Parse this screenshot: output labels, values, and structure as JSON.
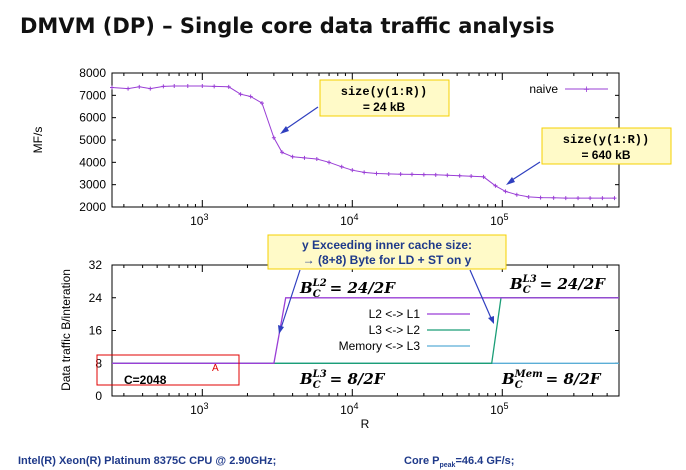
{
  "title": "DMVM (DP) – Single core data traffic analysis",
  "footer": {
    "cpu": "Intel(R) Xeon(R) Platinum 8375C CPU @ 2.90GHz;",
    "peak_prefix": "Core P",
    "peak_sub": "peak",
    "peak_suffix": "=46.4 GF/s;"
  },
  "colors": {
    "naive": "#9a3fd6",
    "l2_l1": "#9a3fd6",
    "l3_l2": "#1b9e77",
    "mem_l3": "#5aaed6",
    "annotation_border": "#f5d000",
    "annotation_fill": "#fffac8",
    "arrow": "#2f3fbf",
    "box_red": "#e00000"
  },
  "chart_data": [
    {
      "type": "line",
      "xscale": "log",
      "xlim": [
        250,
        600000
      ],
      "ylim": [
        2000,
        8000
      ],
      "ylabel": "MF/s",
      "yticks": [
        "2000",
        "3000",
        "4000",
        "5000",
        "6000",
        "7000",
        "8000"
      ],
      "xticks": [
        {
          "base": "10",
          "exp": "3"
        },
        {
          "base": "10",
          "exp": "4"
        },
        {
          "base": "10",
          "exp": "5"
        }
      ],
      "legend": "top-right",
      "series": [
        {
          "name": "naive",
          "x": [
            250,
            320,
            380,
            450,
            550,
            650,
            800,
            1000,
            1200,
            1500,
            1800,
            2100,
            2500,
            3000,
            3400,
            4000,
            4800,
            5800,
            7000,
            8500,
            10000,
            12000,
            14500,
            17500,
            21000,
            25000,
            30000,
            36000,
            43000,
            52000,
            62000,
            75000,
            90000,
            105000,
            125000,
            150000,
            180000,
            220000,
            265000,
            320000,
            385000,
            465000,
            560000
          ],
          "y": [
            7350,
            7300,
            7380,
            7300,
            7400,
            7420,
            7420,
            7420,
            7400,
            7380,
            7050,
            6950,
            6650,
            5100,
            4450,
            4250,
            4200,
            4150,
            4000,
            3800,
            3650,
            3550,
            3500,
            3480,
            3470,
            3460,
            3450,
            3440,
            3420,
            3400,
            3380,
            3350,
            2950,
            2700,
            2550,
            2450,
            2420,
            2410,
            2400,
            2400,
            2400,
            2400,
            2400
          ]
        }
      ],
      "annotations": [
        {
          "code": "size(y(1:R))",
          "value": "= 24 kB"
        },
        {
          "code": "size(y(1:R))",
          "value": "= 640 kB"
        }
      ]
    },
    {
      "type": "line",
      "xscale": "log",
      "xlim": [
        250,
        600000
      ],
      "ylim": [
        0,
        32
      ],
      "ylabel": "Data traffic B/interation",
      "xlabel": "R",
      "yticks": [
        "0",
        "8",
        "16",
        "24",
        "32"
      ],
      "xticks": [
        {
          "base": "10",
          "exp": "3"
        },
        {
          "base": "10",
          "exp": "4"
        },
        {
          "base": "10",
          "exp": "5"
        }
      ],
      "legend": "center",
      "series": [
        {
          "name": "L2 <-> L1",
          "x": [
            250,
            3000,
            3600,
            600000
          ],
          "y": [
            8,
            8,
            24,
            24
          ]
        },
        {
          "name": "L3 <-> L2",
          "x": [
            250,
            85000,
            98000,
            600000
          ],
          "y": [
            8,
            8,
            24,
            24
          ]
        },
        {
          "name": "Memory <-> L3",
          "x": [
            250,
            600000
          ],
          "y": [
            8,
            8
          ]
        }
      ],
      "callout": {
        "line1": "y Exceeding inner cache size:",
        "line2": "→ (8+8) Byte for LD + ST on y"
      },
      "formulas": {
        "l2": {
          "base": "B",
          "sub": "C",
          "sup": "L2",
          "rhs": "= 24/2F"
        },
        "l3_top": {
          "base": "B",
          "sub": "C",
          "sup": "L3",
          "rhs": "= 24/2F"
        },
        "l3_bottom": {
          "base": "B",
          "sub": "C",
          "sup": "L3",
          "rhs": "= 8/2F"
        },
        "mem": {
          "base": "B",
          "sub": "C",
          "sup": "Mem",
          "rhs": "= 8/2F"
        }
      },
      "box_label": "C=2048",
      "box_marker": "A"
    }
  ]
}
